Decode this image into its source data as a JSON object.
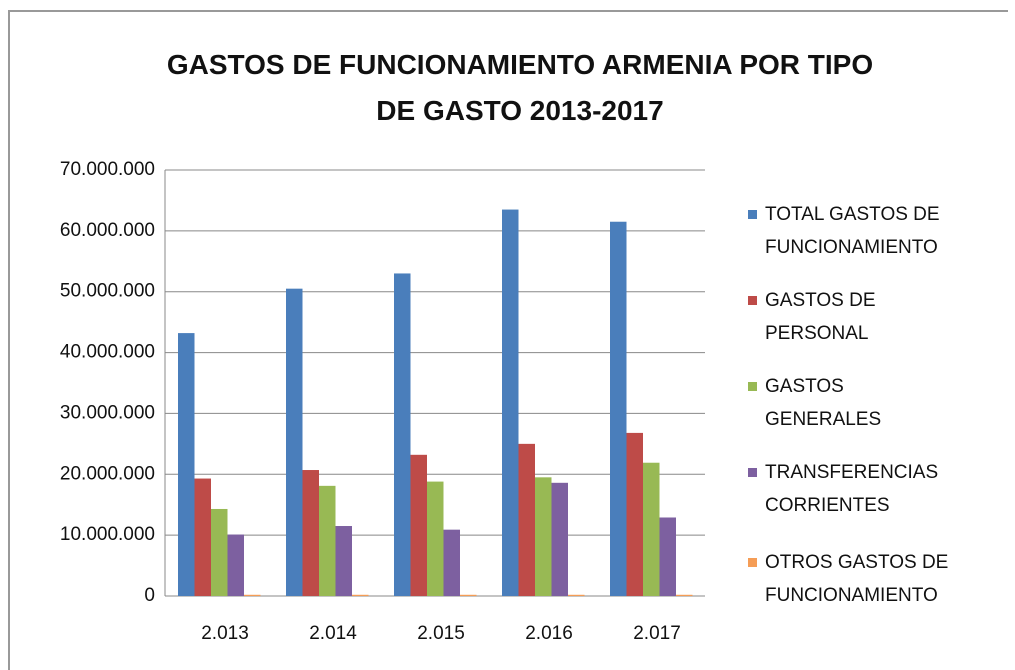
{
  "chart_data": {
    "type": "bar",
    "title": "GASTOS DE FUNCIONAMIENTO ARMENIA POR TIPO DE GASTO 2013-2017",
    "categories": [
      "2.013",
      "2.014",
      "2.015",
      "2.016",
      "2.017"
    ],
    "series": [
      {
        "name": "TOTAL GASTOS DE FUNCIONAMIENTO",
        "color": "#4a7ebb",
        "values": [
          43200000,
          50500000,
          53000000,
          63500000,
          61500000
        ]
      },
      {
        "name": "GASTOS DE PERSONAL",
        "color": "#be4b48",
        "values": [
          19300000,
          20700000,
          23200000,
          25000000,
          26800000
        ]
      },
      {
        "name": "GASTOS GENERALES",
        "color": "#98b954",
        "values": [
          14300000,
          18100000,
          18800000,
          19500000,
          21900000
        ]
      },
      {
        "name": "TRANSFERENCIAS CORRIENTES",
        "color": "#7d60a0",
        "values": [
          10100000,
          11500000,
          10900000,
          18600000,
          12900000
        ]
      },
      {
        "name": "OTROS GASTOS DE FUNCIONAMIENTO",
        "color": "#f59d56",
        "values": [
          200000,
          200000,
          200000,
          200000,
          200000
        ]
      }
    ],
    "ylim": [
      0,
      70000000
    ],
    "yticks": [
      {
        "value": 0,
        "label": "0"
      },
      {
        "value": 10000000,
        "label": "10.000.000"
      },
      {
        "value": 20000000,
        "label": "20.000.000"
      },
      {
        "value": 30000000,
        "label": "30.000.000"
      },
      {
        "value": 40000000,
        "label": "40.000.000"
      },
      {
        "value": 50000000,
        "label": "50.000.000"
      },
      {
        "value": 60000000,
        "label": "60.000.000"
      },
      {
        "value": 70000000,
        "label": "70.000.000"
      }
    ],
    "grid": true,
    "legend": "right"
  }
}
